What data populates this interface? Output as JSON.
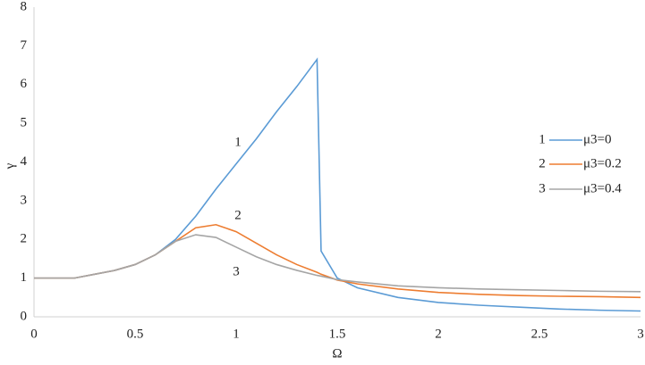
{
  "chart_data": {
    "type": "line",
    "x_label": "Ω",
    "y_label": "γ",
    "x": [
      0,
      0.1,
      0.2,
      0.3,
      0.4,
      0.5,
      0.6,
      0.7,
      0.8,
      0.9,
      1.0,
      1.1,
      1.2,
      1.3,
      1.4,
      1.42,
      1.5,
      1.6,
      1.8,
      2.0,
      2.2,
      2.4,
      2.6,
      2.8,
      3.0
    ],
    "series": [
      {
        "label": "1",
        "name": "μ3=0",
        "color": "#5b9bd5",
        "values": [
          1,
          1,
          1,
          1.1,
          1.2,
          1.35,
          1.6,
          2.0,
          2.6,
          3.3,
          3.95,
          4.6,
          5.3,
          5.95,
          6.65,
          1.7,
          1.0,
          0.75,
          0.5,
          0.37,
          0.3,
          0.25,
          0.2,
          0.17,
          0.15
        ]
      },
      {
        "label": "2",
        "name": "μ3=0.2",
        "color": "#ed7d31",
        "values": [
          1,
          1,
          1,
          1.1,
          1.2,
          1.35,
          1.6,
          1.95,
          2.3,
          2.38,
          2.2,
          1.9,
          1.6,
          1.35,
          1.15,
          1.1,
          0.95,
          0.85,
          0.72,
          0.63,
          0.58,
          0.55,
          0.53,
          0.52,
          0.5
        ]
      },
      {
        "label": "3",
        "name": "μ3=0.4",
        "color": "#a5a5a5",
        "values": [
          1,
          1,
          1,
          1.1,
          1.2,
          1.35,
          1.6,
          1.95,
          2.12,
          2.05,
          1.8,
          1.55,
          1.35,
          1.2,
          1.07,
          1.05,
          0.96,
          0.9,
          0.8,
          0.75,
          0.72,
          0.7,
          0.68,
          0.66,
          0.65
        ]
      }
    ],
    "xlim": [
      0,
      3
    ],
    "xticks": [
      0,
      0.5,
      1,
      1.5,
      2,
      2.5,
      3
    ],
    "ylim": [
      0,
      8
    ],
    "yticks": [
      0,
      1,
      2,
      3,
      4,
      5,
      6,
      7,
      8
    ],
    "grid": false
  }
}
